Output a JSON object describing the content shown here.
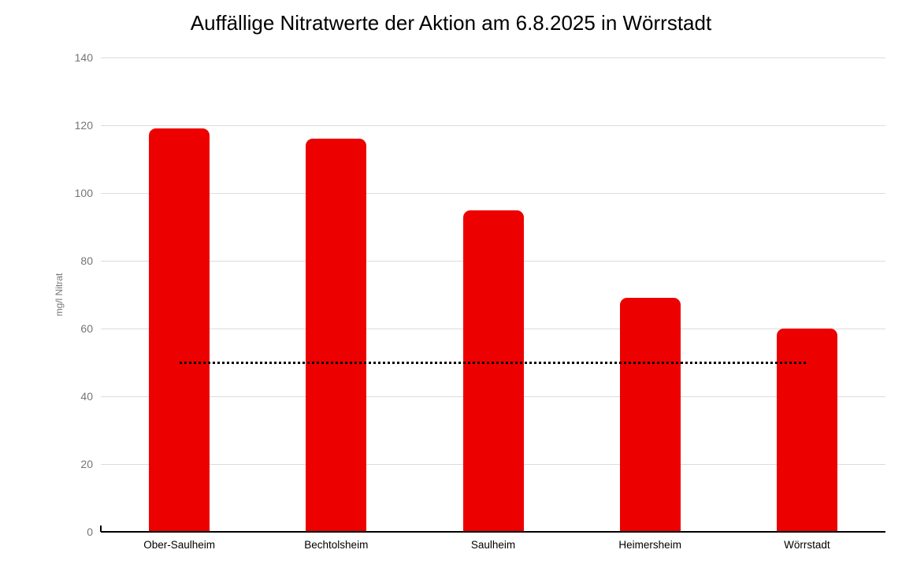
{
  "chart_data": {
    "type": "bar",
    "title": "Auffällige Nitratwerte der Aktion am 6.8.2025 in Wörrstadt",
    "categories": [
      "Ober-Saulheim",
      "Bechtolsheim",
      "Saulheim",
      "Heimersheim",
      "Wörrstadt"
    ],
    "values": [
      119,
      116,
      95,
      69,
      60
    ],
    "series_name": "mg/l Nitrat",
    "xlabel": "",
    "ylabel": "mg/l Nitrat",
    "ylim": [
      0,
      140
    ],
    "ytick_step": 20,
    "yticks": [
      0,
      20,
      40,
      60,
      80,
      100,
      120,
      140
    ],
    "grid": true,
    "legend": "none",
    "bar_color": "#ec0000",
    "reference_line": {
      "value": 50,
      "style": "dotted",
      "color": "#000000"
    },
    "axis_color": "#000000",
    "gridline_color": "#dadce0",
    "tick_label_color": "#757575",
    "category_label_color": "#000000"
  }
}
